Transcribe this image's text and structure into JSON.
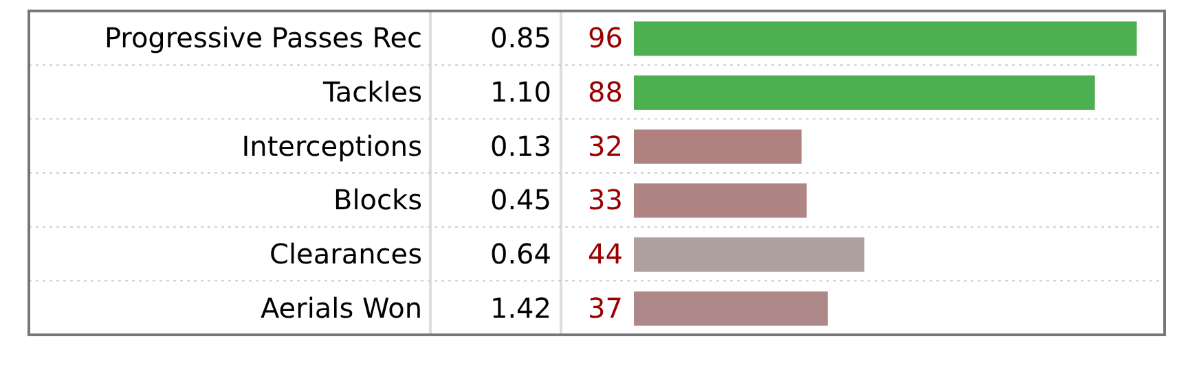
{
  "chart_data": {
    "type": "bar",
    "orientation": "horizontal",
    "categories": [
      "Progressive Passes Rec",
      "Tackles",
      "Interceptions",
      "Blocks",
      "Clearances",
      "Aerials Won"
    ],
    "values": [
      96,
      88,
      32,
      33,
      44,
      37
    ],
    "colors": [
      "#4caf50",
      "#4caf50",
      "#ae8080",
      "#ae8484",
      "#afa0a0",
      "#ae8888"
    ],
    "data_labels": true,
    "annotations": [
      "0.85",
      "1.10",
      "0.13",
      "0.45",
      "0.64",
      "1.42"
    ]
  }
}
